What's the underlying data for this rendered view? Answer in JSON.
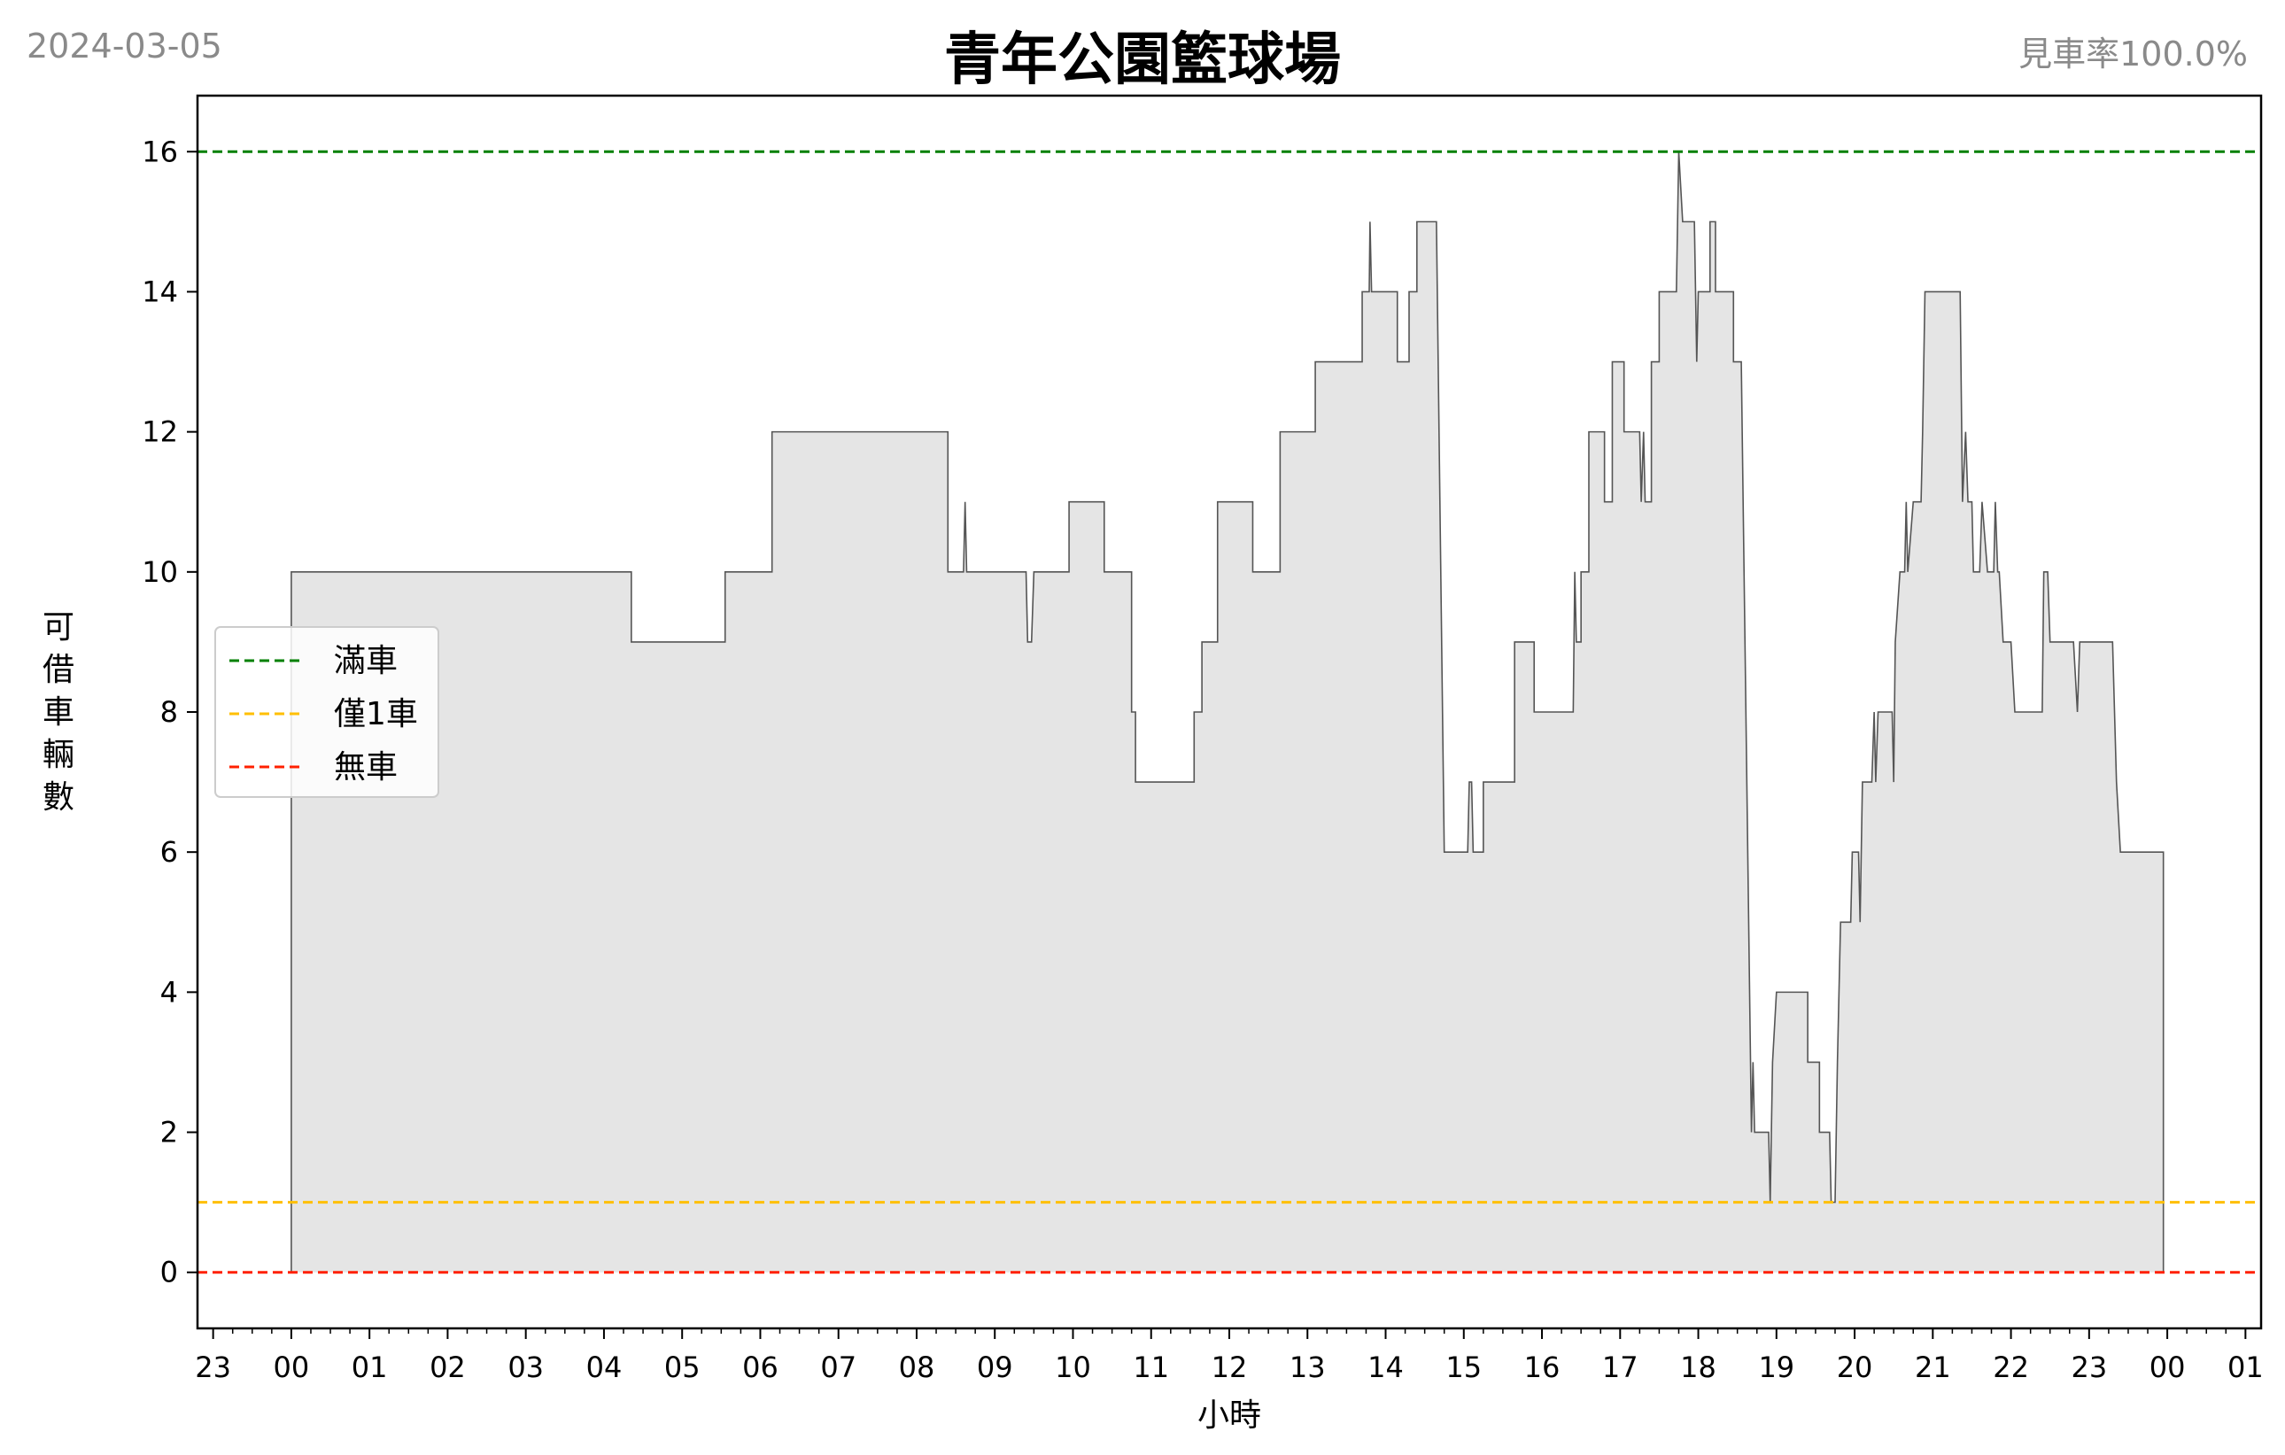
{
  "header": {
    "date": "2024-03-05",
    "title": "青年公園籃球場",
    "rate": "見車率100.0%"
  },
  "chart_data": {
    "type": "area",
    "xlabel": "小時",
    "ylabel": "可借車輛數",
    "ylim": [
      -0.8,
      16.8
    ],
    "xlim_hours": [
      -1.2,
      25.2
    ],
    "x_ticks": [
      {
        "h": -1,
        "label": "23"
      },
      {
        "h": 0,
        "label": "00"
      },
      {
        "h": 1,
        "label": "01"
      },
      {
        "h": 2,
        "label": "02"
      },
      {
        "h": 3,
        "label": "03"
      },
      {
        "h": 4,
        "label": "04"
      },
      {
        "h": 5,
        "label": "05"
      },
      {
        "h": 6,
        "label": "06"
      },
      {
        "h": 7,
        "label": "07"
      },
      {
        "h": 8,
        "label": "08"
      },
      {
        "h": 9,
        "label": "09"
      },
      {
        "h": 10,
        "label": "10"
      },
      {
        "h": 11,
        "label": "11"
      },
      {
        "h": 12,
        "label": "12"
      },
      {
        "h": 13,
        "label": "13"
      },
      {
        "h": 14,
        "label": "14"
      },
      {
        "h": 15,
        "label": "15"
      },
      {
        "h": 16,
        "label": "16"
      },
      {
        "h": 17,
        "label": "17"
      },
      {
        "h": 18,
        "label": "18"
      },
      {
        "h": 19,
        "label": "19"
      },
      {
        "h": 20,
        "label": "20"
      },
      {
        "h": 21,
        "label": "21"
      },
      {
        "h": 22,
        "label": "22"
      },
      {
        "h": 23,
        "label": "23"
      },
      {
        "h": 24,
        "label": "00"
      },
      {
        "h": 25,
        "label": "01"
      }
    ],
    "y_ticks": [
      0,
      2,
      4,
      6,
      8,
      10,
      12,
      14,
      16
    ],
    "reference_lines": [
      {
        "name": "滿車",
        "value": 16,
        "color": "#008000"
      },
      {
        "name": "僅1車",
        "value": 1,
        "color": "#ffbf00"
      },
      {
        "name": "無車",
        "value": 0,
        "color": "#ff2000"
      }
    ],
    "series": [
      {
        "color": "#555555",
        "fill": "#e5e5e5",
        "points": [
          [
            0.0,
            10
          ],
          [
            4.35,
            10
          ],
          [
            4.35,
            9
          ],
          [
            5.55,
            9
          ],
          [
            5.55,
            10
          ],
          [
            6.15,
            10
          ],
          [
            6.15,
            12
          ],
          [
            8.4,
            12
          ],
          [
            8.4,
            10
          ],
          [
            8.6,
            10
          ],
          [
            8.62,
            11
          ],
          [
            8.64,
            10
          ],
          [
            9.4,
            10
          ],
          [
            9.42,
            9
          ],
          [
            9.47,
            9
          ],
          [
            9.5,
            10
          ],
          [
            9.95,
            10
          ],
          [
            9.95,
            11
          ],
          [
            10.4,
            11
          ],
          [
            10.4,
            10
          ],
          [
            10.75,
            10
          ],
          [
            10.75,
            8
          ],
          [
            10.8,
            8
          ],
          [
            10.8,
            7
          ],
          [
            11.55,
            7
          ],
          [
            11.55,
            8
          ],
          [
            11.65,
            8
          ],
          [
            11.65,
            9
          ],
          [
            11.85,
            9
          ],
          [
            11.85,
            11
          ],
          [
            12.3,
            11
          ],
          [
            12.3,
            10
          ],
          [
            12.65,
            10
          ],
          [
            12.65,
            12
          ],
          [
            13.1,
            12
          ],
          [
            13.1,
            13
          ],
          [
            13.7,
            13
          ],
          [
            13.7,
            14
          ],
          [
            13.79,
            14
          ],
          [
            13.8,
            15
          ],
          [
            13.82,
            14
          ],
          [
            14.15,
            14
          ],
          [
            14.15,
            13
          ],
          [
            14.3,
            13
          ],
          [
            14.3,
            14
          ],
          [
            14.4,
            14
          ],
          [
            14.4,
            15
          ],
          [
            14.65,
            15
          ],
          [
            14.75,
            6
          ],
          [
            15.05,
            6
          ],
          [
            15.07,
            7
          ],
          [
            15.1,
            7
          ],
          [
            15.12,
            6
          ],
          [
            15.25,
            6
          ],
          [
            15.25,
            7
          ],
          [
            15.65,
            7
          ],
          [
            15.65,
            9
          ],
          [
            15.9,
            9
          ],
          [
            15.9,
            8
          ],
          [
            16.4,
            8
          ],
          [
            16.42,
            10
          ],
          [
            16.44,
            9
          ],
          [
            16.5,
            9
          ],
          [
            16.5,
            10
          ],
          [
            16.6,
            10
          ],
          [
            16.6,
            12
          ],
          [
            16.8,
            12
          ],
          [
            16.8,
            11
          ],
          [
            16.9,
            11
          ],
          [
            16.9,
            13
          ],
          [
            17.05,
            13
          ],
          [
            17.05,
            12
          ],
          [
            17.25,
            12
          ],
          [
            17.27,
            11
          ],
          [
            17.3,
            12
          ],
          [
            17.32,
            11
          ],
          [
            17.4,
            11
          ],
          [
            17.4,
            13
          ],
          [
            17.5,
            13
          ],
          [
            17.5,
            14
          ],
          [
            17.72,
            14
          ],
          [
            17.75,
            16
          ],
          [
            17.8,
            15
          ],
          [
            17.95,
            15
          ],
          [
            17.98,
            13
          ],
          [
            18.0,
            14
          ],
          [
            18.15,
            14
          ],
          [
            18.15,
            15
          ],
          [
            18.22,
            15
          ],
          [
            18.22,
            14
          ],
          [
            18.45,
            14
          ],
          [
            18.45,
            13
          ],
          [
            18.55,
            13
          ],
          [
            18.68,
            2
          ],
          [
            18.7,
            3
          ],
          [
            18.72,
            2
          ],
          [
            18.9,
            2
          ],
          [
            18.92,
            1
          ],
          [
            18.95,
            3
          ],
          [
            19.0,
            4
          ],
          [
            19.4,
            4
          ],
          [
            19.4,
            3
          ],
          [
            19.55,
            3
          ],
          [
            19.55,
            2
          ],
          [
            19.68,
            2
          ],
          [
            19.7,
            1
          ],
          [
            19.75,
            1
          ],
          [
            19.78,
            3
          ],
          [
            19.82,
            5
          ],
          [
            19.95,
            5
          ],
          [
            19.97,
            6
          ],
          [
            20.05,
            6
          ],
          [
            20.07,
            5
          ],
          [
            20.1,
            7
          ],
          [
            20.22,
            7
          ],
          [
            20.25,
            8
          ],
          [
            20.27,
            7
          ],
          [
            20.3,
            8
          ],
          [
            20.48,
            8
          ],
          [
            20.5,
            7
          ],
          [
            20.52,
            9
          ],
          [
            20.58,
            10
          ],
          [
            20.64,
            10
          ],
          [
            20.66,
            11
          ],
          [
            20.68,
            10
          ],
          [
            20.75,
            11
          ],
          [
            20.85,
            11
          ],
          [
            20.87,
            12
          ],
          [
            20.9,
            14
          ],
          [
            21.35,
            14
          ],
          [
            21.38,
            11
          ],
          [
            21.42,
            12
          ],
          [
            21.45,
            11
          ],
          [
            21.5,
            11
          ],
          [
            21.52,
            10
          ],
          [
            21.6,
            10
          ],
          [
            21.63,
            11
          ],
          [
            21.7,
            10
          ],
          [
            21.78,
            10
          ],
          [
            21.8,
            11
          ],
          [
            21.83,
            10
          ],
          [
            21.85,
            10
          ],
          [
            21.9,
            9
          ],
          [
            22.0,
            9
          ],
          [
            22.05,
            8
          ],
          [
            22.4,
            8
          ],
          [
            22.42,
            10
          ],
          [
            22.47,
            10
          ],
          [
            22.5,
            9
          ],
          [
            22.8,
            9
          ],
          [
            22.85,
            8
          ],
          [
            22.88,
            9
          ],
          [
            23.3,
            9
          ],
          [
            23.35,
            7
          ],
          [
            23.4,
            6
          ],
          [
            23.95,
            6
          ],
          [
            23.95,
            0
          ]
        ]
      }
    ]
  }
}
